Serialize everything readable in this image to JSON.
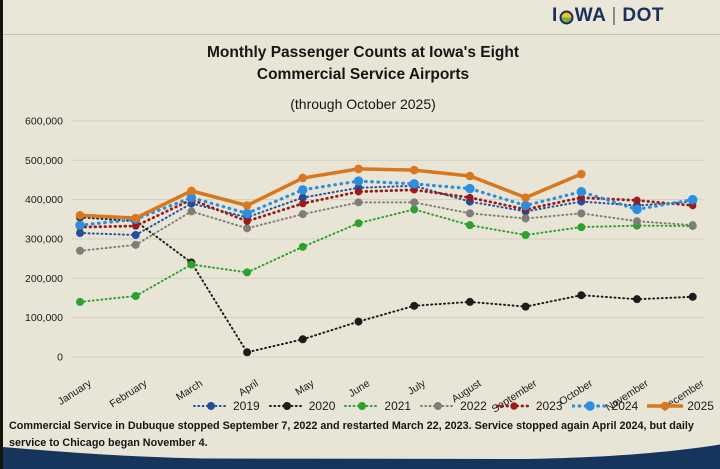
{
  "header": {
    "logo_part1": "I",
    "logo_part2": "WA",
    "logo_part3": "DOT"
  },
  "chart_data": {
    "type": "line",
    "title_line1": "Monthly Passenger Counts at Iowa's Eight",
    "title_line2": "Commercial Service Airports",
    "subtitle": "(through October 2025)",
    "categories": [
      "January",
      "February",
      "March",
      "April",
      "May",
      "June",
      "July",
      "August",
      "September",
      "October",
      "November",
      "December"
    ],
    "ylim": [
      0,
      600000
    ],
    "ytick_step": 100000,
    "grid": true,
    "legend_position": "bottom",
    "series": [
      {
        "name": "2019",
        "color": "#1f4fa0",
        "style": "dotted",
        "values": [
          315000,
          310000,
          390000,
          355000,
          405000,
          430000,
          435000,
          395000,
          370000,
          395000,
          385000,
          395000
        ]
      },
      {
        "name": "2020",
        "color": "#1c1c1c",
        "style": "dotted",
        "values": [
          355000,
          345000,
          240000,
          12000,
          45000,
          90000,
          130000,
          140000,
          128000,
          157000,
          147000,
          153000
        ]
      },
      {
        "name": "2021",
        "color": "#2ba32b",
        "style": "dotted",
        "values": [
          140000,
          155000,
          235000,
          215000,
          280000,
          340000,
          375000,
          335000,
          310000,
          330000,
          334000,
          333000
        ]
      },
      {
        "name": "2022",
        "color": "#7f7d78",
        "style": "dotted",
        "values": [
          270000,
          285000,
          370000,
          327000,
          363000,
          393000,
          393000,
          365000,
          352000,
          365000,
          345000,
          335000
        ]
      },
      {
        "name": "2023",
        "color": "#9c1a1c",
        "style": "dotted-heavy",
        "values": [
          330000,
          333000,
          400000,
          345000,
          390000,
          420000,
          425000,
          405000,
          375000,
          405000,
          398000,
          385000
        ]
      },
      {
        "name": "2024",
        "color": "#2b8ee0",
        "style": "dotted-spaced",
        "values": [
          335000,
          350000,
          405000,
          365000,
          425000,
          447000,
          440000,
          428000,
          385000,
          420000,
          375000,
          400000
        ]
      },
      {
        "name": "2025",
        "color": "#d9771e",
        "style": "solid",
        "values": [
          360000,
          353000,
          422000,
          385000,
          455000,
          478000,
          475000,
          460000,
          405000,
          465000,
          null,
          null
        ]
      }
    ]
  },
  "footnote": "Commercial Service in Dubuque stopped September 7, 2022 and restarted March 22, 2023. Service stopped again April 2024, but daily service to Chicago began November 4.",
  "colors": {
    "background": "#e9e5d6",
    "gridline": "#d3cebd",
    "footer_navy": "#16355c",
    "logo_navy": "#1b2f5e",
    "logo_yellow": "#f0c12a",
    "logo_green": "#76b043"
  }
}
